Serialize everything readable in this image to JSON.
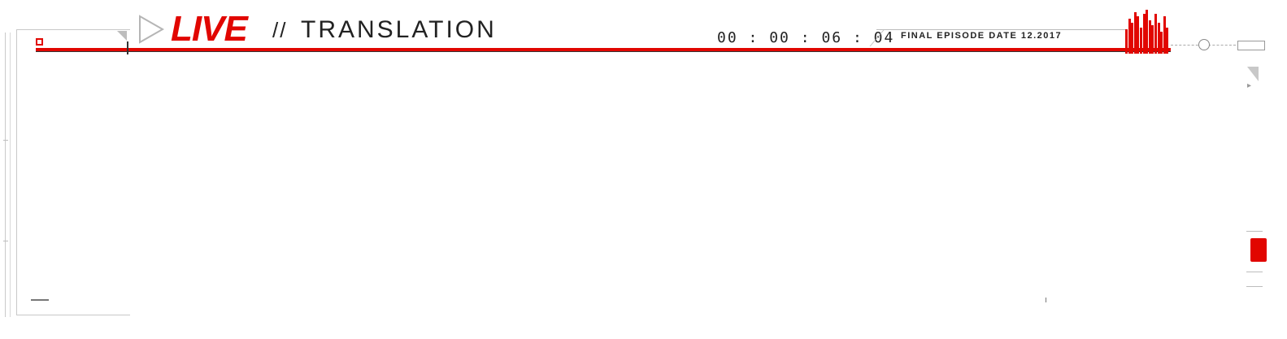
{
  "header": {
    "live_label": "LIVE",
    "separator": "//",
    "translation_label": "TRANSLATION"
  },
  "timecode": {
    "hours": "00",
    "minutes": "00",
    "seconds": "06",
    "frames": "04",
    "sep": ":"
  },
  "episode": {
    "label": "FINAL EPISODE DATE 12.2017"
  },
  "meter": {
    "levels": [
      0.55,
      0.8,
      0.7,
      0.95,
      0.85,
      0.6,
      0.9,
      1.0,
      0.75,
      0.65,
      0.9,
      0.7,
      0.5,
      0.85,
      0.6
    ]
  },
  "colors": {
    "accent": "#e10600",
    "text": "#222222",
    "frame": "#c8c8c8"
  },
  "icons": {
    "play": "play-triangle-icon",
    "record": "record-icon",
    "knob": "volume-knob-icon"
  }
}
